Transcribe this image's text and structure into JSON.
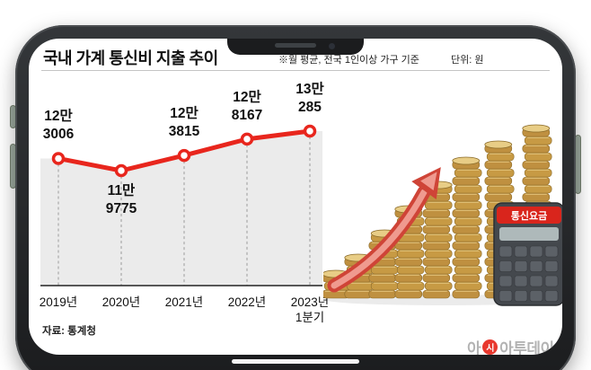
{
  "header": {
    "title": "국내 가계 통신비 지출 추이",
    "note": "※월 평균, 전국 1인이상 가구 기준",
    "unit": "단위: 원"
  },
  "chart_data": {
    "type": "line",
    "title": "국내 가계 통신비 지출 추이",
    "categories": [
      "2019년",
      "2020년",
      "2021년",
      "2022년",
      "2023년 1분기"
    ],
    "category_lines": [
      [
        "2019년"
      ],
      [
        "2020년"
      ],
      [
        "2021년"
      ],
      [
        "2022년"
      ],
      [
        "2023년",
        "1분기"
      ]
    ],
    "values": [
      123006,
      119775,
      123815,
      128167,
      130285
    ],
    "value_labels": [
      [
        "12만",
        "3006"
      ],
      [
        "11만",
        "9775"
      ],
      [
        "12만",
        "3815"
      ],
      [
        "12만",
        "8167"
      ],
      [
        "13만",
        "285"
      ]
    ],
    "label_side": [
      "above",
      "below",
      "above",
      "above",
      "above"
    ],
    "unit": "원",
    "note": "월 평균, 전국 1인이상 가구 기준",
    "line_color": "#e8261d",
    "point_fill": "#ffffff",
    "area_color": "#ebebeb",
    "dropline_color": "#9b9b9b",
    "axis_color": "#222222",
    "legend": "none",
    "grid": "dashed droplines per point"
  },
  "source": "자료: 통계청",
  "illustration": {
    "coin_stacks": [
      3,
      5,
      8,
      11,
      14,
      17,
      19,
      21
    ],
    "coin_color": "#c79a44",
    "coin_top_color": "#e8cd86",
    "arrow_color": "#cf4437",
    "arrow_inner_color": "#ef9a8f",
    "calculator_label": "통신요금",
    "calculator_badge_color": "#d9251c"
  },
  "watermark": {
    "pre": "아",
    "mark": "시",
    "post": "아투데이"
  }
}
